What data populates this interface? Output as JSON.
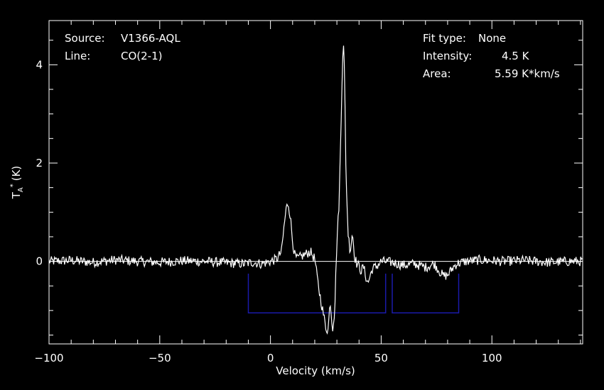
{
  "header": {
    "source_label": "Source:",
    "source_value": "V1366-AQL",
    "line_label": "Line:",
    "line_value": "CO(2-1)",
    "fit_label": "Fit type:",
    "fit_value": "None",
    "intensity_label": "Intensity:",
    "intensity_value": "4.5 K",
    "area_label": "Area:",
    "area_value": "5.59 K*km/s"
  },
  "chart_data": {
    "type": "line",
    "xlabel": "Velocity (km/s)",
    "ylabel_main": "T",
    "ylabel_sub": "A",
    "ylabel_sup": "*",
    "ylabel_unit": "(K)",
    "xlim": [
      -100,
      141
    ],
    "ylim": [
      -1.68,
      4.9
    ],
    "x_ticks": [
      -100,
      -50,
      0,
      50,
      100
    ],
    "y_ticks": [
      0,
      2,
      4
    ],
    "x_tick_labels": [
      "−100",
      "−50",
      "0",
      "50",
      "100"
    ],
    "y_tick_labels": [
      "0",
      "2",
      "4"
    ],
    "zero_line": 0,
    "colors": {
      "spectrum": "#ffffff",
      "baseline_windows": "#1a1aaa",
      "frame": "#ffffff"
    },
    "baseline_windows": [
      {
        "x0": -10,
        "x1": 52,
        "top": -0.25,
        "bottom": -1.05
      },
      {
        "x0": 55,
        "x1": 85,
        "top": -0.25,
        "bottom": -1.05
      }
    ],
    "series": [
      {
        "x": [
          -100,
          -90,
          -80,
          -70,
          -60,
          -50,
          -40,
          -30,
          -20,
          -12,
          -8,
          -4,
          0,
          3,
          5,
          6,
          7,
          8,
          9,
          10,
          11,
          12,
          14,
          16,
          18,
          20,
          21,
          22,
          23,
          24,
          25,
          26,
          27,
          28,
          29,
          30,
          31,
          32,
          32.5,
          33,
          33.5,
          34,
          35,
          36,
          37,
          38,
          39,
          40,
          41,
          42,
          43,
          44,
          46,
          48,
          50,
          55,
          60,
          65,
          70,
          74,
          76,
          78,
          80,
          82,
          84,
          88,
          95,
          105,
          115,
          125,
          135,
          141
        ],
        "y": [
          0.0,
          0.02,
          -0.02,
          0.03,
          0.0,
          -0.02,
          0.01,
          0.0,
          -0.03,
          -0.05,
          -0.02,
          -0.05,
          0.0,
          0.05,
          0.2,
          0.65,
          1.05,
          1.2,
          0.9,
          0.4,
          0.12,
          0.05,
          0.1,
          0.15,
          0.2,
          0.05,
          -0.3,
          -0.6,
          -0.85,
          -1.1,
          -1.35,
          -1.4,
          -0.8,
          -1.38,
          -1.0,
          0.4,
          1.2,
          3.0,
          4.15,
          4.45,
          3.8,
          2.0,
          0.6,
          0.2,
          0.6,
          0.1,
          -0.05,
          -0.1,
          -0.2,
          -0.1,
          -0.3,
          -0.45,
          -0.15,
          -0.1,
          0.0,
          -0.02,
          -0.08,
          -0.05,
          -0.12,
          -0.05,
          -0.18,
          -0.3,
          -0.28,
          -0.15,
          -0.05,
          0.0,
          0.03,
          0.0,
          0.02,
          -0.02,
          0.0,
          0.0
        ]
      }
    ]
  }
}
